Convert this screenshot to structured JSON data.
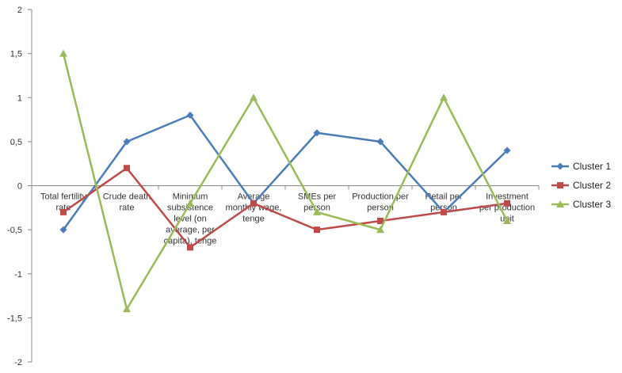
{
  "chart_data": {
    "type": "line",
    "title": "",
    "xlabel": "",
    "ylabel": "",
    "ylim": [
      -2,
      2
    ],
    "yticks": [
      2,
      1.5,
      1,
      0.5,
      0,
      -0.5,
      -1,
      -1.5,
      -2
    ],
    "ytick_labels": [
      "2",
      "1,5",
      "1",
      "0,5",
      "0",
      "-0,5",
      "-1",
      "-1,5",
      "-2"
    ],
    "grid": false,
    "legend_position": "right",
    "categories": [
      [
        "Total fertility",
        "rate"
      ],
      [
        "Crude death",
        "rate"
      ],
      [
        "Minimum",
        "subsistence",
        "level (on",
        "average, per",
        "capita), tenge"
      ],
      [
        "Average",
        "monthly wage,",
        "tenge"
      ],
      [
        "SMEs per",
        "person"
      ],
      [
        "Production per",
        "person"
      ],
      [
        "Retail per",
        "person"
      ],
      [
        "Investment",
        "per production",
        "unit"
      ]
    ],
    "series": [
      {
        "name": "Cluster 1",
        "color": "#4a7ebb",
        "marker": "diamond",
        "values": [
          -0.5,
          0.5,
          0.8,
          -0.2,
          0.6,
          0.5,
          -0.3,
          0.4
        ]
      },
      {
        "name": "Cluster 2",
        "color": "#be4b48",
        "marker": "square",
        "values": [
          -0.3,
          0.2,
          -0.7,
          -0.2,
          -0.5,
          -0.4,
          -0.3,
          -0.2
        ]
      },
      {
        "name": "Cluster 3",
        "color": "#9bbb59",
        "marker": "triangle",
        "values": [
          1.5,
          -1.4,
          -0.2,
          1.0,
          -0.3,
          -0.5,
          1.0,
          -0.4
        ]
      }
    ]
  }
}
